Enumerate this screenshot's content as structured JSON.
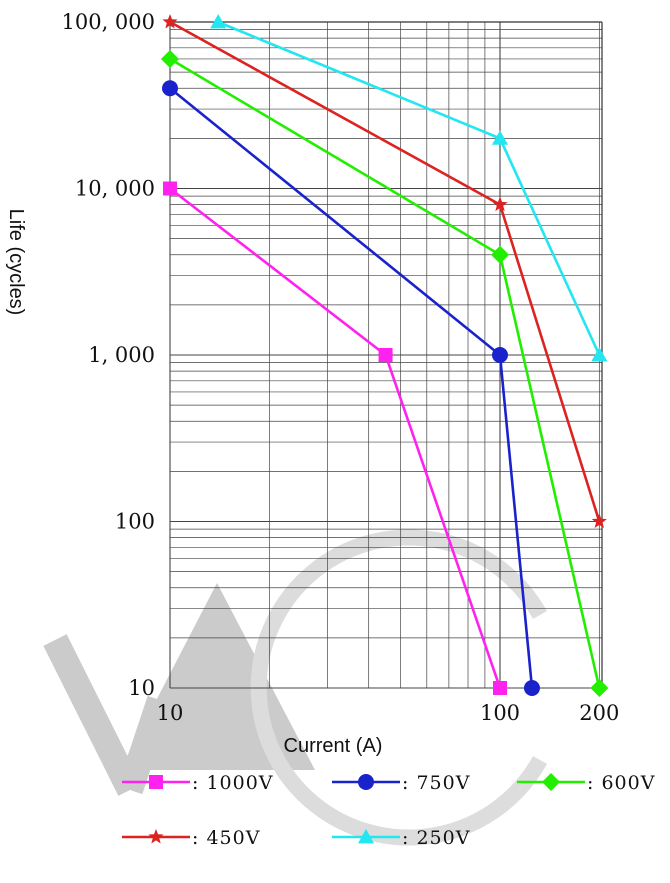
{
  "chart_data": {
    "type": "line",
    "xlabel": "Current (A)",
    "ylabel": "Life (cycles)",
    "x_scale": "log",
    "y_scale": "log",
    "xlim": [
      10,
      200
    ],
    "ylim": [
      10,
      100000
    ],
    "grid": true,
    "legend_position": "bottom",
    "x_ticks": [
      {
        "value": 10,
        "label": "10"
      },
      {
        "value": 100,
        "label": "100"
      },
      {
        "value": 200,
        "label": "200"
      }
    ],
    "y_ticks": [
      {
        "value": 100000,
        "label": "100, 000"
      },
      {
        "value": 10000,
        "label": "10, 000"
      },
      {
        "value": 1000,
        "label": "1, 000"
      },
      {
        "value": 100,
        "label": "100"
      },
      {
        "value": 10,
        "label": "10"
      }
    ],
    "series": [
      {
        "name": ": 1000V",
        "color": "#ff22ee",
        "marker": "square",
        "points": [
          [
            10,
            10000
          ],
          [
            45,
            1000
          ],
          [
            100,
            10
          ]
        ]
      },
      {
        "name": ": 750V",
        "color": "#1a22cc",
        "marker": "circle",
        "points": [
          [
            10,
            40000
          ],
          [
            100,
            1000
          ],
          [
            125,
            10
          ]
        ]
      },
      {
        "name": ": 600V",
        "color": "#22ee00",
        "marker": "diamond",
        "points": [
          [
            10,
            60000
          ],
          [
            100,
            4000
          ],
          [
            200,
            10
          ]
        ]
      },
      {
        "name": ": 450V",
        "color": "#dd2222",
        "marker": "star",
        "points": [
          [
            10,
            100000
          ],
          [
            100,
            8000
          ],
          [
            200,
            100
          ]
        ]
      },
      {
        "name": ": 250V",
        "color": "#22e6f0",
        "marker": "triangle",
        "points": [
          [
            14,
            100000
          ],
          [
            100,
            20000
          ],
          [
            200,
            1000
          ]
        ]
      }
    ]
  }
}
